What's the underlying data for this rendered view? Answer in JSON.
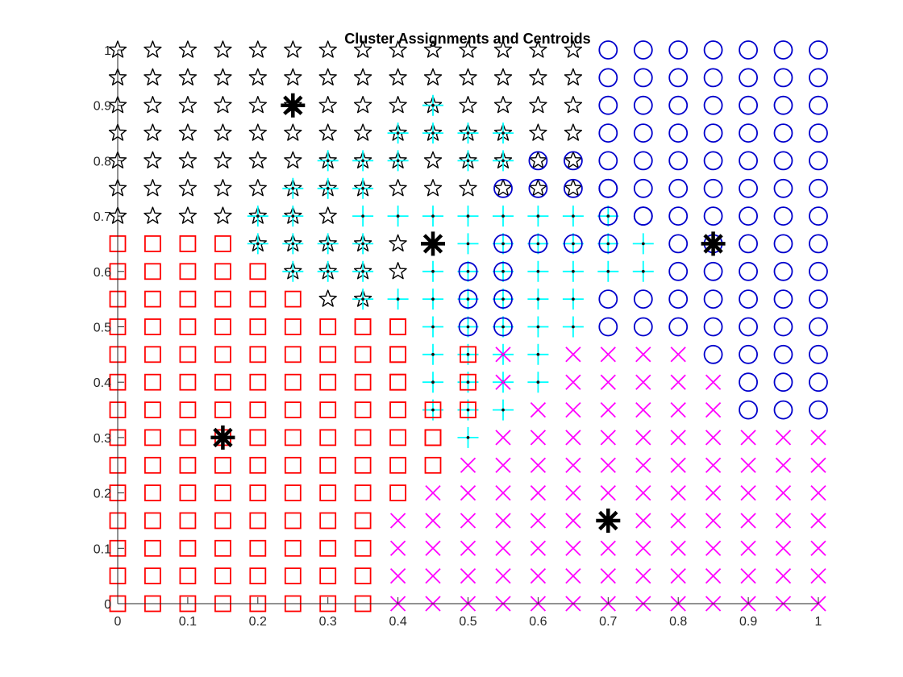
{
  "chart_data": {
    "type": "scatter",
    "title": "Cluster Assignments and Centroids",
    "xlabel": "",
    "ylabel": "",
    "xlim": [
      0,
      1
    ],
    "ylim": [
      0,
      1
    ],
    "grid": false,
    "grid_step": 0.05,
    "xticks": [
      0,
      0.1,
      0.2,
      0.3,
      0.4,
      0.5,
      0.6,
      0.7,
      0.8,
      0.9,
      1
    ],
    "yticks": [
      0,
      0.1,
      0.2,
      0.3,
      0.4,
      0.5,
      0.6,
      0.7,
      0.8,
      0.9,
      1
    ],
    "xtick_labels": [
      "0",
      "0.1",
      "0.2",
      "0.3",
      "0.4",
      "0.5",
      "0.6",
      "0.7",
      "0.8",
      "0.9",
      "1"
    ],
    "ytick_labels": [
      "0",
      "0.1",
      "0.2",
      "0.3",
      "0.4",
      "0.5",
      "0.6",
      "0.7",
      "0.8",
      "0.9",
      "1"
    ],
    "series": [
      {
        "marker": "square",
        "color": "#ff0000"
      },
      {
        "marker": "x",
        "color": "#ff00ff"
      },
      {
        "marker": "star",
        "color": "#000000"
      },
      {
        "marker": "circle",
        "color": "#0000cc"
      },
      {
        "marker": "plus",
        "color": "#00ffff"
      }
    ],
    "assignment_rows_top_to_bottom": [
      "SSSSSSSSSSSSSSCCCCCCC",
      "SSSSSSSSSSSSSSCCCCCCC",
      "SSSSSSSSSSSSSSCCCCCCC",
      "SSSSSSSSSSSSSSCCCCCCC",
      "SSSSSSSSSSSSSSCCCCCCC",
      "SSSSSSSSSSSSSSCCCCCCC",
      "SSSSSSSPPPPPPPPCCCCCC",
      "QQQQSSSSSPPPPPPPCCCCC",
      "QQQQQSSSSPPPPPPPCCCCC",
      "QQQQQQSSPPPPPPCCCCCCC",
      "QQQQQQQQQPPPPPCCCCCCC",
      "QQQQQQQQQPPPPXXXXCCCC",
      "QQQQQQQQQPPPPXXXXXCCC",
      "QQQQQQQQQPPPXXXXXXCCC",
      "QQQQQQQQQQPXXXXXXXXXX",
      "QQQQQQQQQQXXXXXXXXXXX",
      "QQQQQQQQQXXXXXXXXXXXX",
      "QQQQQQQQXXXXXXXXXXXXX",
      "QQQQQQQQXXXXXXXXXXXXX",
      "QQQQQQQQXXXXXXXXXXXXX",
      "QQQQQQQQXXXXXXXXXXXXX"
    ],
    "legend_codes": {
      "Q": "square",
      "X": "x",
      "S": "star",
      "C": "circle",
      "P": "plus"
    },
    "second_cluster_overlay": [
      {
        "x": 0.45,
        "y": 0.9,
        "marker": "plus"
      },
      {
        "x": 0.4,
        "y": 0.85,
        "marker": "plus"
      },
      {
        "x": 0.45,
        "y": 0.85,
        "marker": "plus"
      },
      {
        "x": 0.5,
        "y": 0.85,
        "marker": "plus"
      },
      {
        "x": 0.55,
        "y": 0.85,
        "marker": "plus"
      },
      {
        "x": 0.3,
        "y": 0.8,
        "marker": "plus"
      },
      {
        "x": 0.35,
        "y": 0.8,
        "marker": "plus"
      },
      {
        "x": 0.4,
        "y": 0.8,
        "marker": "plus"
      },
      {
        "x": 0.5,
        "y": 0.8,
        "marker": "plus"
      },
      {
        "x": 0.55,
        "y": 0.8,
        "marker": "plus"
      },
      {
        "x": 0.6,
        "y": 0.8,
        "marker": "circle"
      },
      {
        "x": 0.65,
        "y": 0.8,
        "marker": "circle"
      },
      {
        "x": 0.25,
        "y": 0.75,
        "marker": "plus"
      },
      {
        "x": 0.3,
        "y": 0.75,
        "marker": "plus"
      },
      {
        "x": 0.35,
        "y": 0.75,
        "marker": "plus"
      },
      {
        "x": 0.55,
        "y": 0.75,
        "marker": "circle"
      },
      {
        "x": 0.6,
        "y": 0.75,
        "marker": "circle"
      },
      {
        "x": 0.65,
        "y": 0.75,
        "marker": "circle"
      },
      {
        "x": 0.7,
        "y": 0.75,
        "marker": "circle"
      },
      {
        "x": 0.2,
        "y": 0.7,
        "marker": "plus"
      },
      {
        "x": 0.25,
        "y": 0.7,
        "marker": "plus"
      },
      {
        "x": 0.7,
        "y": 0.7,
        "marker": "circle"
      },
      {
        "x": 0.75,
        "y": 0.7,
        "marker": "circle"
      },
      {
        "x": 0.2,
        "y": 0.65,
        "marker": "plus"
      },
      {
        "x": 0.25,
        "y": 0.65,
        "marker": "plus"
      },
      {
        "x": 0.3,
        "y": 0.65,
        "marker": "plus"
      },
      {
        "x": 0.35,
        "y": 0.65,
        "marker": "plus"
      },
      {
        "x": 0.55,
        "y": 0.65,
        "marker": "circle"
      },
      {
        "x": 0.6,
        "y": 0.65,
        "marker": "circle"
      },
      {
        "x": 0.65,
        "y": 0.65,
        "marker": "circle"
      },
      {
        "x": 0.7,
        "y": 0.65,
        "marker": "circle"
      },
      {
        "x": 0.25,
        "y": 0.6,
        "marker": "plus"
      },
      {
        "x": 0.3,
        "y": 0.6,
        "marker": "plus"
      },
      {
        "x": 0.35,
        "y": 0.6,
        "marker": "plus"
      },
      {
        "x": 0.5,
        "y": 0.6,
        "marker": "circle"
      },
      {
        "x": 0.55,
        "y": 0.6,
        "marker": "circle"
      },
      {
        "x": 0.35,
        "y": 0.55,
        "marker": "plus"
      },
      {
        "x": 0.5,
        "y": 0.55,
        "marker": "circle"
      },
      {
        "x": 0.55,
        "y": 0.55,
        "marker": "circle"
      },
      {
        "x": 0.35,
        "y": 0.5,
        "marker": "square"
      },
      {
        "x": 0.4,
        "y": 0.5,
        "marker": "square"
      },
      {
        "x": 0.5,
        "y": 0.5,
        "marker": "circle"
      },
      {
        "x": 0.55,
        "y": 0.5,
        "marker": "circle"
      },
      {
        "x": 0.4,
        "y": 0.45,
        "marker": "square"
      },
      {
        "x": 0.5,
        "y": 0.45,
        "marker": "square"
      },
      {
        "x": 0.55,
        "y": 0.45,
        "marker": "x"
      },
      {
        "x": 0.4,
        "y": 0.4,
        "marker": "square"
      },
      {
        "x": 0.5,
        "y": 0.4,
        "marker": "square"
      },
      {
        "x": 0.55,
        "y": 0.4,
        "marker": "x"
      },
      {
        "x": 0.4,
        "y": 0.35,
        "marker": "square"
      },
      {
        "x": 0.45,
        "y": 0.35,
        "marker": "square"
      },
      {
        "x": 0.5,
        "y": 0.35,
        "marker": "square"
      },
      {
        "x": 0.45,
        "y": 0.3,
        "marker": "square"
      }
    ],
    "centroids": [
      {
        "x": 0.25,
        "y": 0.9
      },
      {
        "x": 0.45,
        "y": 0.65
      },
      {
        "x": 0.85,
        "y": 0.65
      },
      {
        "x": 0.15,
        "y": 0.3
      },
      {
        "x": 0.7,
        "y": 0.15
      }
    ],
    "centroid_color": "#000000"
  }
}
